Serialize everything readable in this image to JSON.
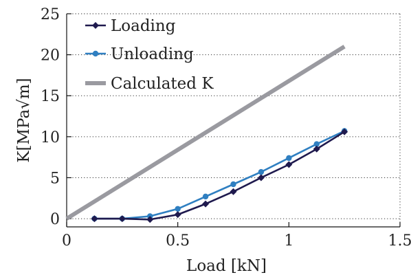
{
  "chart_data": {
    "type": "line",
    "title": "",
    "xlabel": "Load [kN]",
    "ylabel": "K[MPa√m]",
    "xlim": [
      0,
      1.5
    ],
    "ylim": [
      -1,
      25
    ],
    "xticks": [
      0,
      0.5,
      1,
      1.5
    ],
    "xtick_labels": [
      "0",
      "0.5",
      "1",
      "1.5"
    ],
    "yticks": [
      0,
      5,
      10,
      15,
      20,
      25
    ],
    "ytick_labels": [
      "0",
      "5",
      "10",
      "15",
      "20",
      "25"
    ],
    "grid": "horizontal dotted",
    "legend_position": "top-left",
    "series": [
      {
        "name": "Loading",
        "color": "#1f1a4e",
        "marker": "diamond",
        "x": [
          0.125,
          0.25,
          0.375,
          0.5,
          0.625,
          0.75,
          0.875,
          1.0,
          1.125,
          1.25
        ],
        "y": [
          0.0,
          0.0,
          -0.1,
          0.5,
          1.8,
          3.3,
          5.0,
          6.6,
          8.5,
          10.6
        ]
      },
      {
        "name": "Unloading",
        "color": "#2f7fc1",
        "marker": "circle",
        "x": [
          0.125,
          0.25,
          0.375,
          0.5,
          0.625,
          0.75,
          0.875,
          1.0,
          1.125,
          1.25
        ],
        "y": [
          0.0,
          0.0,
          0.3,
          1.2,
          2.7,
          4.2,
          5.7,
          7.4,
          9.1,
          10.7
        ]
      },
      {
        "name": "Calculated K",
        "color": "#9a9aa0",
        "marker": "none",
        "x": [
          0.0,
          1.25
        ],
        "y": [
          0.0,
          21.0
        ]
      }
    ]
  }
}
